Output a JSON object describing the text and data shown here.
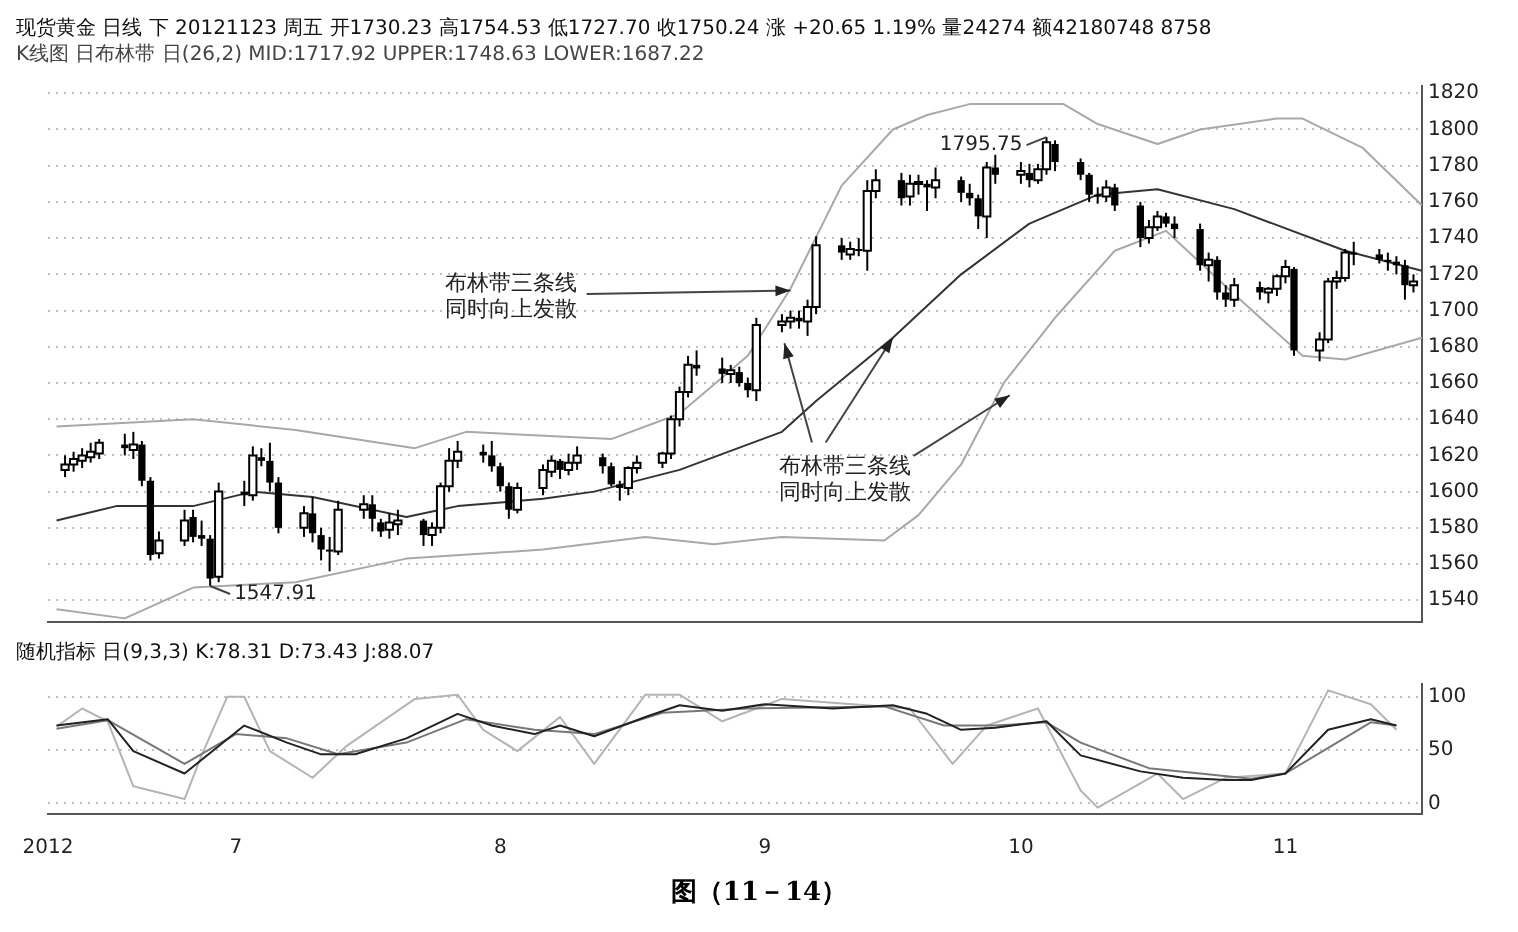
{
  "chart_data": [
    {
      "type": "candlestick",
      "title": "现货黄金 日线 下 20121123 周五 开1730.23 高1754.53 低1727.70 收1750.24 涨 +20.65 1.19% 量24274 额42180748 8758",
      "subtitle": "K线图 日布林带 日(26,2) MID:1717.92 UPPER:1748.63 LOWER:1687.22",
      "x": [
        "2012-06-11",
        "2012-06-12",
        "2012-06-13",
        "2012-06-14",
        "2012-06-15",
        "2012-06-18",
        "2012-06-19",
        "2012-06-20",
        "2012-06-21",
        "2012-06-22",
        "2012-06-25",
        "2012-06-26",
        "2012-06-27",
        "2012-06-28",
        "2012-06-29",
        "2012-07-02",
        "2012-07-03",
        "2012-07-04",
        "2012-07-05",
        "2012-07-06",
        "2012-07-09",
        "2012-07-10",
        "2012-07-11",
        "2012-07-12",
        "2012-07-13",
        "2012-07-16",
        "2012-07-17",
        "2012-07-18",
        "2012-07-19",
        "2012-07-20",
        "2012-07-23",
        "2012-07-24",
        "2012-07-25",
        "2012-07-26",
        "2012-07-27",
        "2012-07-30",
        "2012-07-31",
        "2012-08-01",
        "2012-08-02",
        "2012-08-03",
        "2012-08-06",
        "2012-08-07",
        "2012-08-08",
        "2012-08-09",
        "2012-08-10",
        "2012-08-13",
        "2012-08-14",
        "2012-08-15",
        "2012-08-16",
        "2012-08-17",
        "2012-08-20",
        "2012-08-21",
        "2012-08-22",
        "2012-08-23",
        "2012-08-24",
        "2012-08-27",
        "2012-08-28",
        "2012-08-29",
        "2012-08-30",
        "2012-08-31",
        "2012-09-03",
        "2012-09-04",
        "2012-09-05",
        "2012-09-06",
        "2012-09-07",
        "2012-09-10",
        "2012-09-11",
        "2012-09-12",
        "2012-09-13",
        "2012-09-14",
        "2012-09-17",
        "2012-09-18",
        "2012-09-19",
        "2012-09-20",
        "2012-09-21",
        "2012-09-24",
        "2012-09-25",
        "2012-09-26",
        "2012-09-27",
        "2012-09-28",
        "2012-10-01",
        "2012-10-02",
        "2012-10-03",
        "2012-10-04",
        "2012-10-05",
        "2012-10-08",
        "2012-10-09",
        "2012-10-10",
        "2012-10-11",
        "2012-10-12",
        "2012-10-15",
        "2012-10-16",
        "2012-10-17",
        "2012-10-18",
        "2012-10-19",
        "2012-10-22",
        "2012-10-23",
        "2012-10-24",
        "2012-10-25",
        "2012-10-26",
        "2012-10-29",
        "2012-10-30",
        "2012-10-31",
        "2012-11-01",
        "2012-11-02",
        "2012-11-05",
        "2012-11-06",
        "2012-11-07",
        "2012-11-08",
        "2012-11-09",
        "2012-11-12",
        "2012-11-13",
        "2012-11-14",
        "2012-11-15",
        "2012-11-16"
      ],
      "ohlc": [
        [
          1612,
          1620,
          1608,
          1615
        ],
        [
          1615,
          1622,
          1611,
          1618
        ],
        [
          1617,
          1624,
          1613,
          1620
        ],
        [
          1619,
          1627,
          1616,
          1622
        ],
        [
          1621,
          1629,
          1618,
          1627
        ],
        [
          1626,
          1632,
          1620,
          1624
        ],
        [
          1623,
          1633,
          1618,
          1626
        ],
        [
          1626,
          1628,
          1603,
          1606
        ],
        [
          1606,
          1608,
          1562,
          1565
        ],
        [
          1566,
          1578,
          1563,
          1573
        ],
        [
          1573,
          1590,
          1570,
          1584
        ],
        [
          1586,
          1590,
          1572,
          1575
        ],
        [
          1576,
          1584,
          1570,
          1574
        ],
        [
          1574,
          1576,
          1547.91,
          1552
        ],
        [
          1553,
          1605,
          1550,
          1600
        ],
        [
          1600,
          1606,
          1592,
          1598
        ],
        [
          1598,
          1625,
          1595,
          1620
        ],
        [
          1619,
          1624,
          1614,
          1617
        ],
        [
          1617,
          1627,
          1600,
          1605
        ],
        [
          1605,
          1608,
          1577,
          1580
        ],
        [
          1580,
          1592,
          1575,
          1588
        ],
        [
          1588,
          1597,
          1572,
          1577
        ],
        [
          1576,
          1580,
          1562,
          1568
        ],
        [
          1568,
          1575,
          1556,
          1567
        ],
        [
          1567,
          1595,
          1565,
          1590
        ],
        [
          1590,
          1598,
          1585,
          1593
        ],
        [
          1593,
          1598,
          1578,
          1585
        ],
        [
          1583,
          1585,
          1575,
          1578
        ],
        [
          1579,
          1588,
          1574,
          1583
        ],
        [
          1582,
          1590,
          1576,
          1584
        ],
        [
          1584,
          1585,
          1570,
          1576
        ],
        [
          1576,
          1583,
          1570,
          1580
        ],
        [
          1580,
          1605,
          1577,
          1603
        ],
        [
          1603,
          1624,
          1600,
          1617
        ],
        [
          1617,
          1628,
          1613,
          1622
        ],
        [
          1622,
          1626,
          1616,
          1620
        ],
        [
          1620,
          1628,
          1611,
          1614
        ],
        [
          1614,
          1616,
          1600,
          1603
        ],
        [
          1603,
          1605,
          1585,
          1590
        ],
        [
          1590,
          1605,
          1588,
          1602
        ],
        [
          1602,
          1615,
          1598,
          1612
        ],
        [
          1611,
          1620,
          1608,
          1617
        ],
        [
          1617,
          1618,
          1607,
          1612
        ],
        [
          1612,
          1621,
          1609,
          1616
        ],
        [
          1616,
          1625,
          1612,
          1620
        ],
        [
          1619,
          1621,
          1610,
          1614
        ],
        [
          1614,
          1616,
          1603,
          1604
        ],
        [
          1604,
          1606,
          1595,
          1602
        ],
        [
          1602,
          1614,
          1598,
          1613
        ],
        [
          1613,
          1620,
          1610,
          1616
        ],
        [
          1616,
          1622,
          1613,
          1621
        ],
        [
          1621,
          1642,
          1618,
          1640
        ],
        [
          1640,
          1658,
          1636,
          1655
        ],
        [
          1655,
          1675,
          1652,
          1670
        ],
        [
          1670,
          1678,
          1664,
          1668
        ],
        [
          1668,
          1674,
          1660,
          1665
        ],
        [
          1665,
          1670,
          1660,
          1667
        ],
        [
          1666,
          1669,
          1658,
          1660
        ],
        [
          1660,
          1663,
          1652,
          1656
        ],
        [
          1656,
          1696,
          1650,
          1692
        ],
        [
          1692,
          1698,
          1688,
          1694
        ],
        [
          1694,
          1700,
          1690,
          1696
        ],
        [
          1696,
          1700,
          1690,
          1694
        ],
        [
          1694,
          1706,
          1686,
          1702
        ],
        [
          1702,
          1741,
          1698,
          1736
        ],
        [
          1736,
          1740,
          1728,
          1732
        ],
        [
          1731,
          1738,
          1728,
          1734
        ],
        [
          1734,
          1740,
          1730,
          1733
        ],
        [
          1733,
          1772,
          1722,
          1766
        ],
        [
          1766,
          1778,
          1762,
          1772
        ],
        [
          1772,
          1776,
          1758,
          1762
        ],
        [
          1763,
          1775,
          1758,
          1770
        ],
        [
          1770,
          1775,
          1764,
          1771
        ],
        [
          1770,
          1772,
          1755,
          1768
        ],
        [
          1768,
          1779,
          1762,
          1772
        ],
        [
          1772,
          1774,
          1760,
          1765
        ],
        [
          1765,
          1770,
          1758,
          1762
        ],
        [
          1762,
          1764,
          1745,
          1752
        ],
        [
          1752,
          1782,
          1740,
          1779
        ],
        [
          1779,
          1786,
          1770,
          1775
        ],
        [
          1775,
          1782,
          1770,
          1777
        ],
        [
          1776,
          1781,
          1768,
          1772
        ],
        [
          1772,
          1781,
          1770,
          1778
        ],
        [
          1778,
          1795.75,
          1775,
          1793
        ],
        [
          1792,
          1794,
          1777,
          1782
        ],
        [
          1782,
          1784,
          1772,
          1775
        ],
        [
          1775,
          1776,
          1760,
          1764
        ],
        [
          1764,
          1768,
          1759,
          1763
        ],
        [
          1763,
          1772,
          1760,
          1768
        ],
        [
          1768,
          1770,
          1755,
          1758
        ],
        [
          1758,
          1760,
          1735,
          1740
        ],
        [
          1740,
          1750,
          1737,
          1746
        ],
        [
          1746,
          1755,
          1744,
          1752
        ],
        [
          1752,
          1754,
          1746,
          1748
        ],
        [
          1748,
          1752,
          1740,
          1745
        ],
        [
          1745,
          1748,
          1722,
          1725
        ],
        [
          1725,
          1732,
          1716,
          1728
        ],
        [
          1728,
          1730,
          1706,
          1710
        ],
        [
          1710,
          1714,
          1702,
          1706
        ],
        [
          1706,
          1718,
          1702,
          1714
        ],
        [
          1713,
          1716,
          1706,
          1710
        ],
        [
          1710,
          1713,
          1704,
          1712
        ],
        [
          1712,
          1720,
          1708,
          1719
        ],
        [
          1719,
          1728,
          1715,
          1724
        ],
        [
          1723,
          1724,
          1675,
          1678
        ],
        [
          1678,
          1688,
          1672,
          1684
        ],
        [
          1684,
          1718,
          1682,
          1716
        ],
        [
          1716,
          1722,
          1712,
          1718
        ],
        [
          1718,
          1734,
          1716,
          1732
        ],
        [
          1732,
          1738,
          1725,
          1731
        ],
        [
          1731,
          1734,
          1726,
          1728
        ],
        [
          1728,
          1732,
          1722,
          1727
        ],
        [
          1727,
          1730,
          1720,
          1725
        ],
        [
          1725,
          1728,
          1706,
          1714
        ],
        [
          1714,
          1720,
          1710,
          1716
        ]
      ],
      "series": [
        {
          "type": "line",
          "color": "#a8a8a8",
          "x": [
            "2012-06-10",
            "2012-06-26",
            "2012-07-08",
            "2012-07-22",
            "2012-07-28",
            "2012-08-14",
            "2012-08-22",
            "2012-08-30",
            "2012-09-04",
            "2012-09-10",
            "2012-09-16",
            "2012-09-20",
            "2012-09-25",
            "2012-10-06",
            "2012-10-10",
            "2012-10-17",
            "2012-10-22",
            "2012-10-31",
            "2012-11-03",
            "2012-11-10",
            "2012-11-17"
          ],
          "values": [
            1636,
            1640,
            1634,
            1624,
            1633,
            1629,
            1643,
            1675,
            1712,
            1769,
            1800,
            1808,
            1814,
            1814,
            1803,
            1792,
            1800,
            1806,
            1806,
            1790,
            1758
          ]
        },
        {
          "type": "line",
          "color": "#333333",
          "x": [
            "2012-06-10",
            "2012-06-17",
            "2012-06-26",
            "2012-07-03",
            "2012-07-10",
            "2012-07-21",
            "2012-07-27",
            "2012-08-06",
            "2012-08-12",
            "2012-08-22",
            "2012-09-03",
            "2012-09-07",
            "2012-09-16",
            "2012-09-24",
            "2012-10-02",
            "2012-10-10",
            "2012-10-17",
            "2012-10-26",
            "2012-11-08",
            "2012-11-17"
          ],
          "values": [
            1584,
            1592,
            1592,
            1600,
            1597,
            1586,
            1592,
            1596,
            1600,
            1612,
            1633,
            1650,
            1685,
            1720,
            1748,
            1764,
            1767,
            1756,
            1733,
            1722
          ]
        },
        {
          "type": "line",
          "color": "#a8a8a8",
          "x": [
            "2012-06-10",
            "2012-06-18",
            "2012-06-26",
            "2012-07-08",
            "2012-07-21",
            "2012-08-06",
            "2012-08-18",
            "2012-08-26",
            "2012-09-03",
            "2012-09-15",
            "2012-09-19",
            "2012-09-24",
            "2012-09-29",
            "2012-10-05",
            "2012-10-12",
            "2012-10-18",
            "2012-10-26",
            "2012-11-03",
            "2012-11-08",
            "2012-11-17"
          ],
          "values": [
            1535,
            1530,
            1547,
            1550,
            1563,
            1568,
            1575,
            1571,
            1575,
            1573,
            1587,
            1615,
            1660,
            1696,
            1733,
            1744,
            1709,
            1675,
            1673,
            1685
          ]
        }
      ],
      "xlim": [
        "2012-06-09",
        "2012-11-17"
      ],
      "ylim": [
        1528,
        1824
      ],
      "yticks": [
        1540,
        1560,
        1580,
        1600,
        1620,
        1640,
        1660,
        1680,
        1700,
        1720,
        1740,
        1760,
        1780,
        1800,
        1820
      ],
      "grid": "y",
      "tick_labels": "y",
      "marker": "none",
      "annotations": [
        {
          "text": "1795.75",
          "x": "2012-10-04",
          "y": 1795.75
        },
        {
          "text": "1547.91",
          "x": "2012-06-28",
          "y": 1547.91
        },
        {
          "text": "布林带三条线同时向上发散",
          "x": "2012-09-04",
          "y": 1711
        },
        {
          "text": "布林带三条线同时向上发散",
          "x": "2012-09-16",
          "y": 1685
        }
      ]
    },
    {
      "type": "line",
      "title": "随机指标 日(9,3,3) K:78.31 D:73.43 J:88.07",
      "series": [
        {
          "color": "#222222",
          "x": [
            "2012-06-10",
            "2012-06-16",
            "2012-06-19",
            "2012-06-25",
            "2012-07-02",
            "2012-07-07",
            "2012-07-11",
            "2012-07-15",
            "2012-07-21",
            "2012-07-27",
            "2012-07-31",
            "2012-08-05",
            "2012-08-08",
            "2012-08-12",
            "2012-08-18",
            "2012-08-22",
            "2012-08-27",
            "2012-09-01",
            "2012-09-09",
            "2012-09-16",
            "2012-09-20",
            "2012-09-24",
            "2012-09-28",
            "2012-10-04",
            "2012-10-08",
            "2012-10-15",
            "2012-10-20",
            "2012-10-25",
            "2012-10-28",
            "2012-11-01",
            "2012-11-06",
            "2012-11-11",
            "2012-11-14"
          ],
          "values": [
            73,
            79,
            49,
            28,
            73,
            57,
            46,
            46,
            61,
            84,
            73,
            65,
            73,
            63,
            81,
            92,
            87,
            93,
            89,
            92,
            84,
            69,
            71,
            77,
            45,
            30,
            24,
            22,
            22,
            28,
            69,
            79,
            73
          ]
        },
        {
          "color": "#777777",
          "x": [
            "2012-06-10",
            "2012-06-16",
            "2012-06-25",
            "2012-07-01",
            "2012-07-07",
            "2012-07-13",
            "2012-07-21",
            "2012-07-28",
            "2012-08-05",
            "2012-08-12",
            "2012-08-20",
            "2012-08-30",
            "2012-09-15",
            "2012-09-22",
            "2012-09-28",
            "2012-10-04",
            "2012-10-08",
            "2012-10-16",
            "2012-10-28",
            "2012-11-01",
            "2012-11-11",
            "2012-11-14"
          ],
          "values": [
            70,
            78,
            37,
            65,
            61,
            46,
            57,
            79,
            69,
            65,
            85,
            89,
            91,
            73,
            73,
            76,
            57,
            33,
            23,
            28,
            76,
            73
          ]
        },
        {
          "color": "#b4b4b4",
          "x": [
            "2012-06-10",
            "2012-06-13",
            "2012-06-16",
            "2012-06-19",
            "2012-06-25",
            "2012-06-27",
            "2012-06-30",
            "2012-07-02",
            "2012-07-05",
            "2012-07-10",
            "2012-07-14",
            "2012-07-22",
            "2012-07-27",
            "2012-07-30",
            "2012-08-03",
            "2012-08-08",
            "2012-08-12",
            "2012-08-18",
            "2012-08-22",
            "2012-08-27",
            "2012-09-03",
            "2012-09-18",
            "2012-09-23",
            "2012-09-27",
            "2012-10-03",
            "2012-10-08",
            "2012-10-10",
            "2012-10-17",
            "2012-10-20",
            "2012-10-25",
            "2012-11-01",
            "2012-11-06",
            "2012-11-11",
            "2012-11-14"
          ],
          "values": [
            72,
            89,
            77,
            16,
            4,
            45,
            100,
            100,
            49,
            24,
            54,
            98,
            102,
            69,
            49,
            81,
            37,
            102,
            102,
            77,
            98,
            89,
            37,
            73,
            89,
            12,
            -4,
            28,
            4,
            24,
            28,
            106,
            93,
            69
          ]
        }
      ],
      "xlim": [
        "2012-06-09",
        "2012-11-17"
      ],
      "xticks": [
        {
          "value": "2012-06-09",
          "label": "2012"
        },
        {
          "value": "2012-07-01",
          "label": "7"
        },
        {
          "value": "2012-08-01",
          "label": "8"
        },
        {
          "value": "2012-09-01",
          "label": "9"
        },
        {
          "value": "2012-10-01",
          "label": "10"
        },
        {
          "value": "2012-11-01",
          "label": "11"
        }
      ],
      "ylim": [
        -10,
        112
      ],
      "yticks": [
        0,
        50,
        100
      ],
      "grid": "y",
      "marker": "none",
      "annotations": [
        "图（11－14）"
      ]
    }
  ]
}
